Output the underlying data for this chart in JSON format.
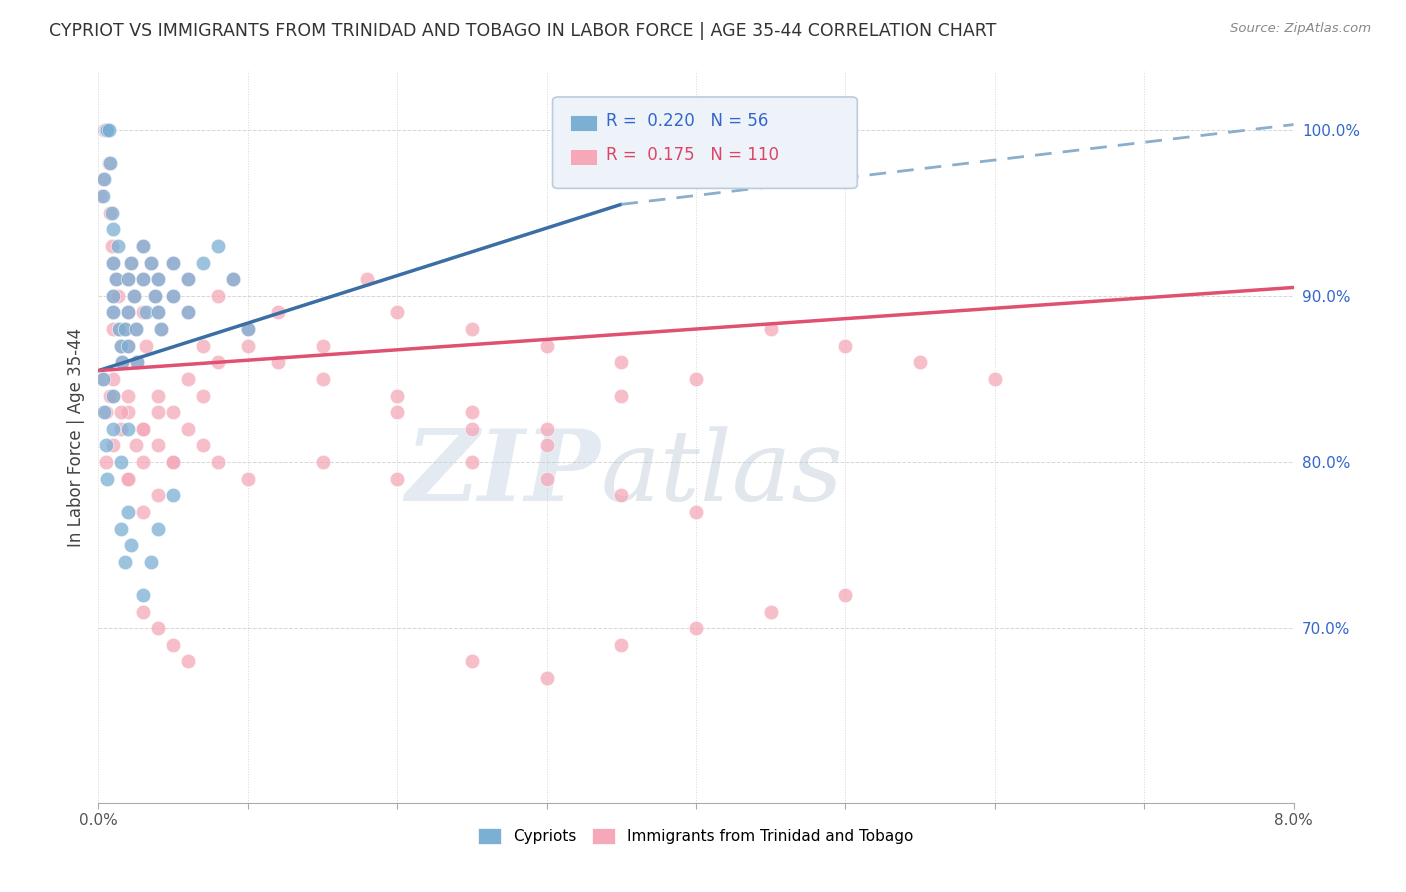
{
  "title": "CYPRIOT VS IMMIGRANTS FROM TRINIDAD AND TOBAGO IN LABOR FORCE | AGE 35-44 CORRELATION CHART",
  "source": "Source: ZipAtlas.com",
  "ylabel": "In Labor Force | Age 35-44",
  "xlim": [
    0.0,
    0.08
  ],
  "ylim": [
    0.595,
    1.035
  ],
  "xticklabels_left": "0.0%",
  "xticklabels_right": "8.0%",
  "yticks_right": [
    0.7,
    0.8,
    0.9,
    1.0
  ],
  "yticks_right_labels": [
    "70.0%",
    "80.0%",
    "90.0%",
    "100.0%"
  ],
  "blue_color": "#7BAFD4",
  "pink_color": "#F4A8B8",
  "blue_line_color": "#3A6EA5",
  "blue_dash_color": "#8AAECC",
  "pink_line_color": "#E05070",
  "blue_R": 0.22,
  "blue_N": 56,
  "pink_R": 0.175,
  "pink_N": 110,
  "blue_scatter_x": [
    0.0003,
    0.0004,
    0.0005,
    0.0006,
    0.0007,
    0.0008,
    0.0009,
    0.001,
    0.001,
    0.001,
    0.001,
    0.0012,
    0.0013,
    0.0014,
    0.0015,
    0.0016,
    0.0018,
    0.002,
    0.002,
    0.002,
    0.0022,
    0.0024,
    0.0025,
    0.0026,
    0.003,
    0.003,
    0.0032,
    0.0035,
    0.0038,
    0.004,
    0.004,
    0.0042,
    0.005,
    0.005,
    0.006,
    0.006,
    0.007,
    0.008,
    0.009,
    0.01,
    0.0003,
    0.0004,
    0.0005,
    0.0006,
    0.001,
    0.001,
    0.0015,
    0.002,
    0.0015,
    0.0018,
    0.002,
    0.0022,
    0.003,
    0.0035,
    0.004,
    0.005
  ],
  "blue_scatter_y": [
    0.96,
    0.97,
    1.0,
    1.0,
    1.0,
    0.98,
    0.95,
    0.94,
    0.92,
    0.9,
    0.89,
    0.91,
    0.93,
    0.88,
    0.87,
    0.86,
    0.88,
    0.91,
    0.89,
    0.87,
    0.92,
    0.9,
    0.88,
    0.86,
    0.93,
    0.91,
    0.89,
    0.92,
    0.9,
    0.91,
    0.89,
    0.88,
    0.92,
    0.9,
    0.91,
    0.89,
    0.92,
    0.93,
    0.91,
    0.88,
    0.85,
    0.83,
    0.81,
    0.79,
    0.84,
    0.82,
    0.8,
    0.82,
    0.76,
    0.74,
    0.77,
    0.75,
    0.72,
    0.74,
    0.76,
    0.78
  ],
  "pink_scatter_x": [
    0.0002,
    0.0003,
    0.0004,
    0.0005,
    0.0006,
    0.0007,
    0.0008,
    0.0009,
    0.001,
    0.001,
    0.001,
    0.001,
    0.0012,
    0.0013,
    0.0014,
    0.0015,
    0.0016,
    0.0018,
    0.002,
    0.002,
    0.002,
    0.0022,
    0.0024,
    0.0025,
    0.0026,
    0.003,
    0.003,
    0.003,
    0.0032,
    0.0035,
    0.0038,
    0.004,
    0.004,
    0.0042,
    0.005,
    0.005,
    0.006,
    0.006,
    0.007,
    0.008,
    0.009,
    0.01,
    0.012,
    0.015,
    0.018,
    0.02,
    0.025,
    0.03,
    0.035,
    0.04,
    0.045,
    0.05,
    0.055,
    0.06,
    0.0003,
    0.0005,
    0.001,
    0.0015,
    0.002,
    0.0025,
    0.003,
    0.004,
    0.005,
    0.006,
    0.007,
    0.008,
    0.01,
    0.012,
    0.015,
    0.02,
    0.025,
    0.03,
    0.0008,
    0.001,
    0.0015,
    0.002,
    0.003,
    0.004,
    0.002,
    0.003,
    0.004,
    0.005,
    0.02,
    0.025,
    0.03,
    0.035,
    0.0005,
    0.001,
    0.002,
    0.003,
    0.004,
    0.005,
    0.006,
    0.007,
    0.008,
    0.01,
    0.015,
    0.02,
    0.025,
    0.03,
    0.035,
    0.04,
    0.003,
    0.004,
    0.005,
    0.006,
    0.025,
    0.03,
    0.035,
    0.04,
    0.045,
    0.05
  ],
  "pink_scatter_y": [
    0.96,
    0.97,
    1.0,
    1.0,
    1.0,
    0.98,
    0.95,
    0.93,
    0.92,
    0.9,
    0.89,
    0.88,
    0.91,
    0.9,
    0.88,
    0.87,
    0.86,
    0.88,
    0.91,
    0.89,
    0.87,
    0.92,
    0.9,
    0.88,
    0.86,
    0.93,
    0.91,
    0.89,
    0.87,
    0.92,
    0.9,
    0.91,
    0.89,
    0.88,
    0.92,
    0.9,
    0.91,
    0.89,
    0.87,
    0.9,
    0.91,
    0.88,
    0.89,
    0.87,
    0.91,
    0.89,
    0.88,
    0.87,
    0.86,
    0.85,
    0.88,
    0.87,
    0.86,
    0.85,
    0.85,
    0.83,
    0.84,
    0.82,
    0.83,
    0.81,
    0.82,
    0.84,
    0.83,
    0.85,
    0.84,
    0.86,
    0.87,
    0.86,
    0.85,
    0.84,
    0.83,
    0.82,
    0.84,
    0.85,
    0.83,
    0.84,
    0.82,
    0.83,
    0.79,
    0.77,
    0.78,
    0.8,
    0.83,
    0.82,
    0.81,
    0.84,
    0.8,
    0.81,
    0.79,
    0.8,
    0.81,
    0.8,
    0.82,
    0.81,
    0.8,
    0.79,
    0.8,
    0.79,
    0.8,
    0.79,
    0.78,
    0.77,
    0.71,
    0.7,
    0.69,
    0.68,
    0.68,
    0.67,
    0.69,
    0.7,
    0.71,
    0.72
  ],
  "watermark_zip": "ZIP",
  "watermark_atlas": "atlas",
  "background_color": "#ffffff",
  "grid_color": "#cccccc"
}
